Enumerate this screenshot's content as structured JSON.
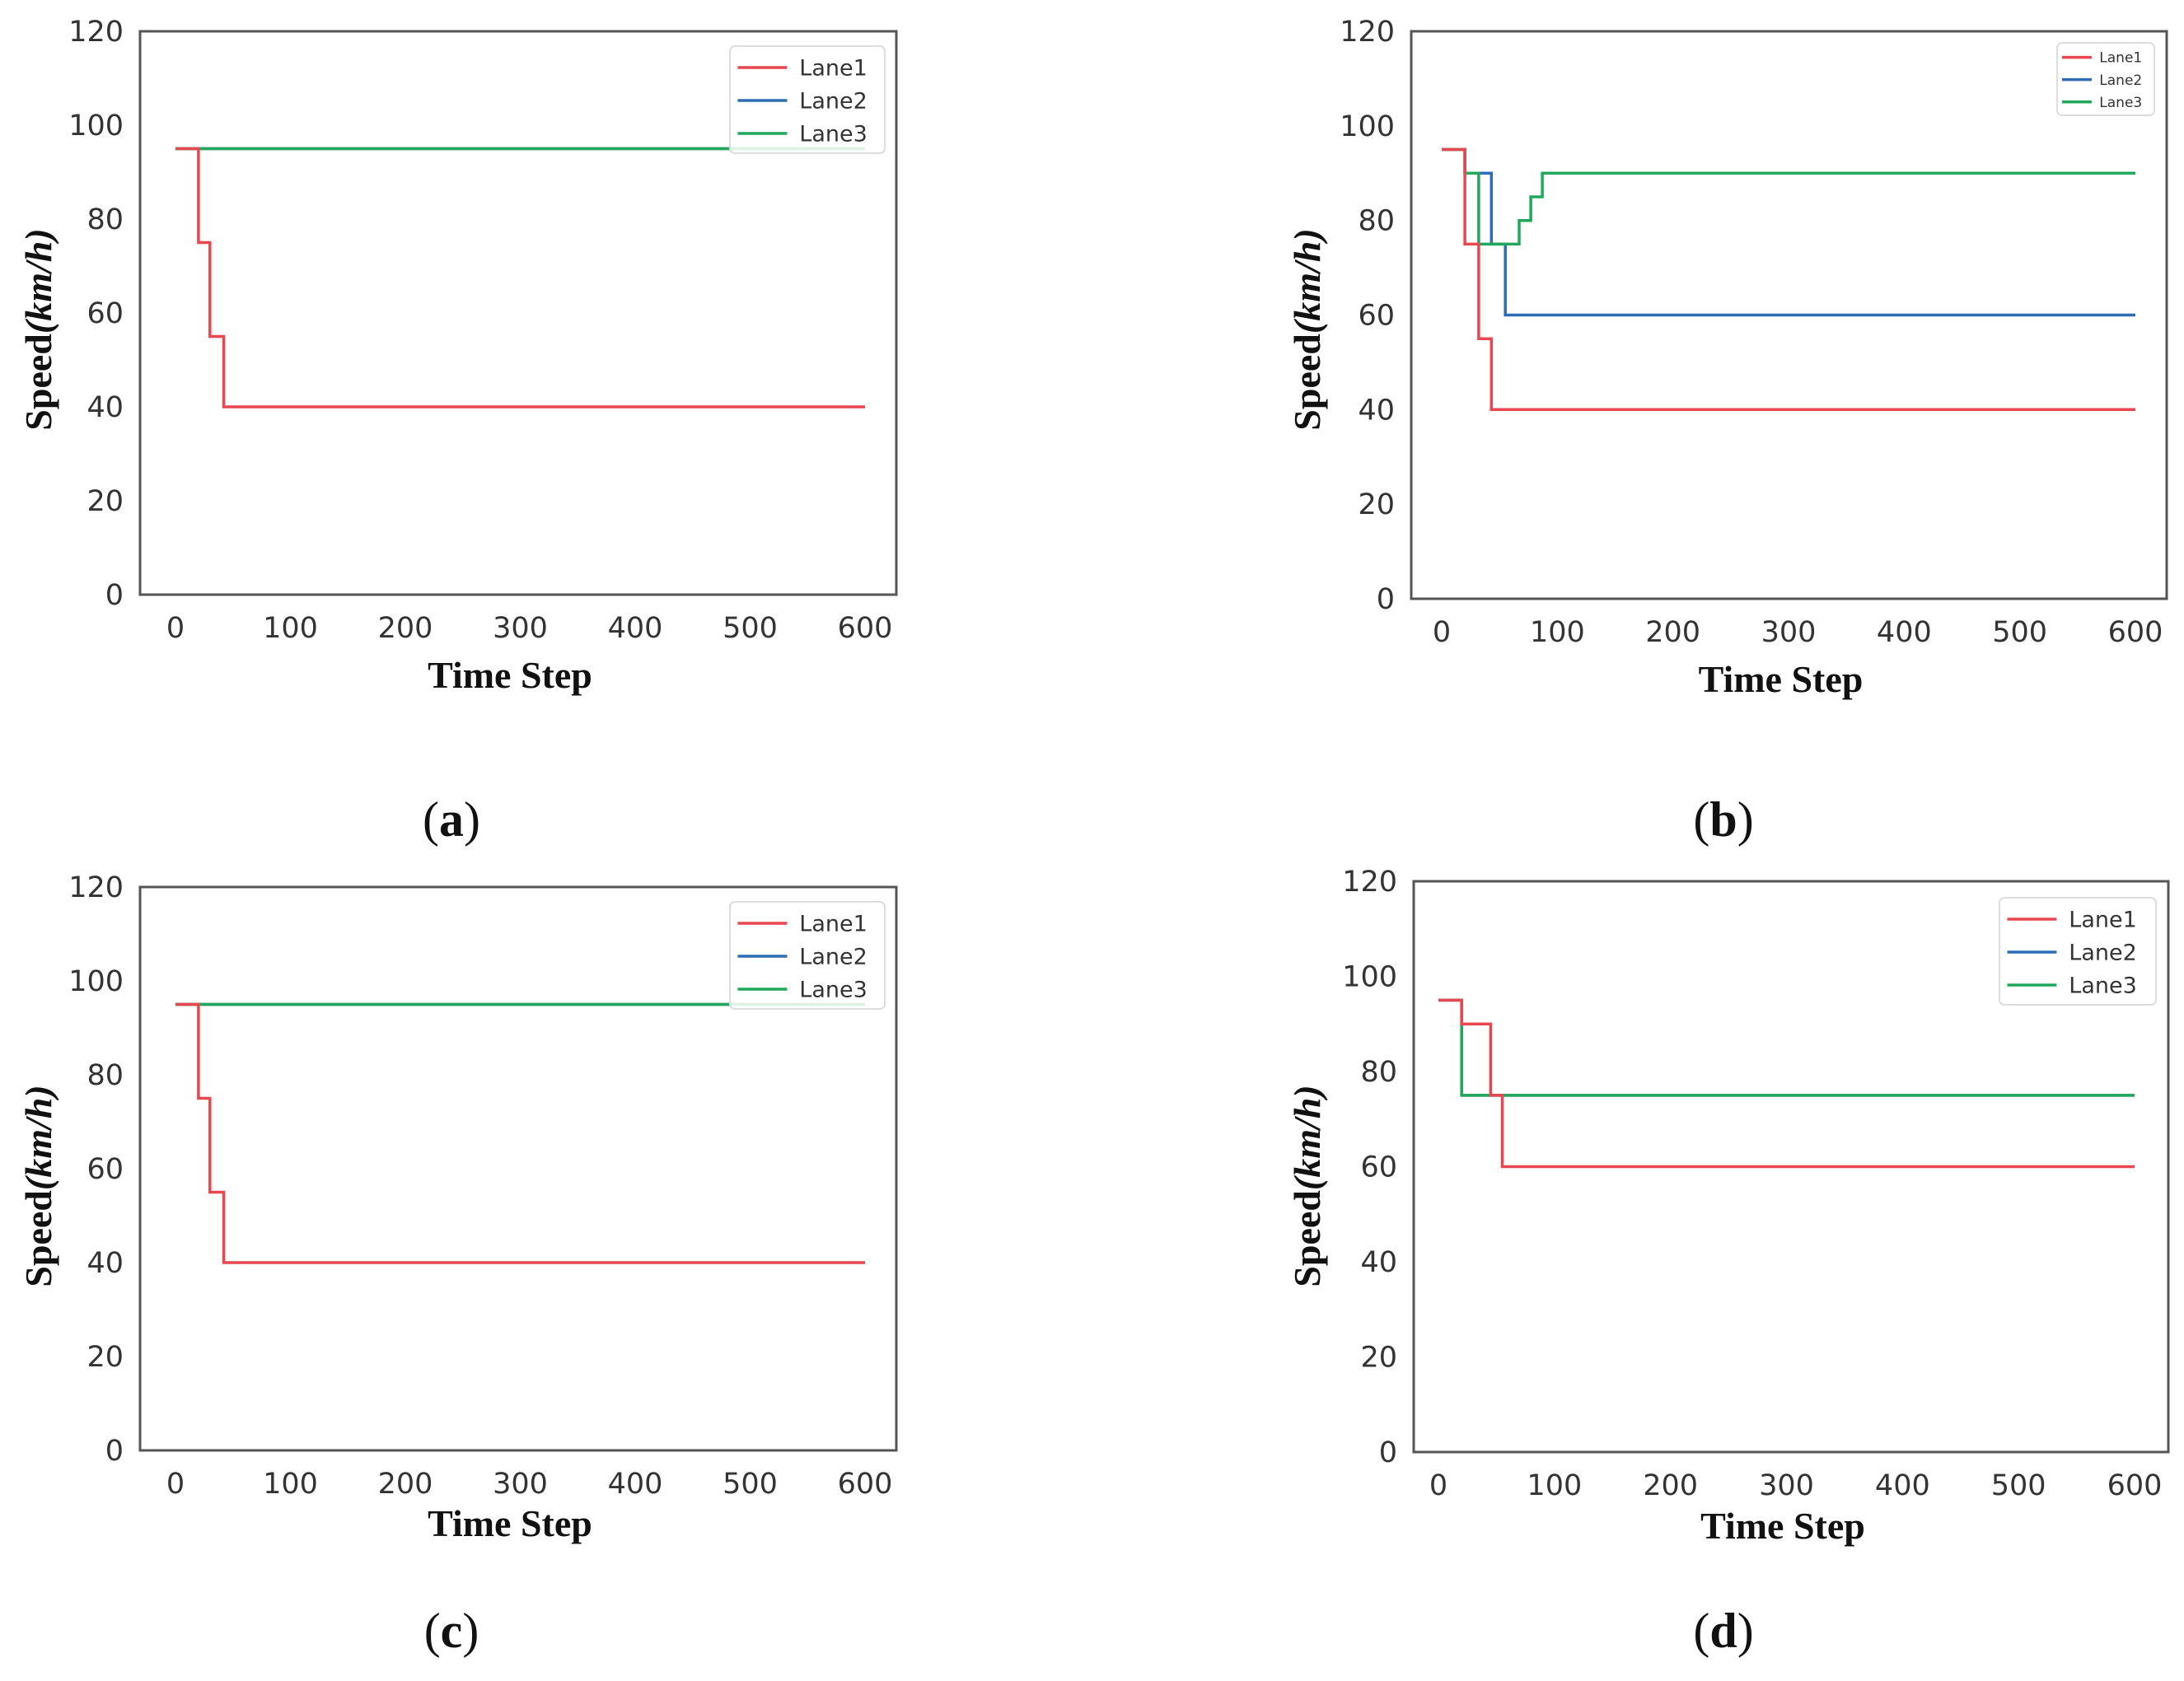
{
  "figure": {
    "colors": {
      "Lane1": "#e8474f",
      "Lane2": "#2e6db4",
      "Lane3": "#22a85a",
      "frame": "#555555",
      "text": "#333333"
    }
  },
  "chart_data": [
    {
      "panel": "a",
      "caption": "(a)",
      "caption_letter": "a",
      "type": "line",
      "xlabel": "Time Step",
      "ylabel_prefix": "Speed",
      "ylabel_unit": "(km/h)",
      "xlim": [
        0,
        600
      ],
      "ylim": [
        0,
        120
      ],
      "xticks": [
        0,
        100,
        200,
        300,
        400,
        500,
        600
      ],
      "yticks": [
        0,
        20,
        40,
        60,
        80,
        100,
        120
      ],
      "legend_position": "top-right",
      "series": [
        {
          "name": "Lane1",
          "color": "#e8474f",
          "x": [
            0,
            20,
            20,
            30,
            30,
            42,
            42,
            600
          ],
          "y": [
            95,
            95,
            75,
            75,
            55,
            55,
            40,
            40
          ]
        },
        {
          "name": "Lane2",
          "color": "#2e6db4",
          "x": [
            0,
            600
          ],
          "y": [
            95,
            95
          ]
        },
        {
          "name": "Lane3",
          "color": "#22a85a",
          "x": [
            0,
            600
          ],
          "y": [
            95,
            95
          ]
        }
      ]
    },
    {
      "panel": "b",
      "caption": "(b)",
      "caption_letter": "b",
      "type": "line",
      "xlabel": "Time Step",
      "ylabel_prefix": "Speed",
      "ylabel_unit": "(km/h)",
      "xlim": [
        0,
        600
      ],
      "ylim": [
        0,
        120
      ],
      "xticks": [
        0,
        100,
        200,
        300,
        400,
        500,
        600
      ],
      "yticks": [
        0,
        20,
        40,
        60,
        80,
        100,
        120
      ],
      "legend_position": "top-right",
      "series": [
        {
          "name": "Lane1",
          "color": "#e8474f",
          "x": [
            0,
            20,
            20,
            32,
            32,
            43,
            43,
            600
          ],
          "y": [
            95,
            95,
            75,
            75,
            55,
            55,
            40,
            40
          ]
        },
        {
          "name": "Lane2",
          "color": "#2e6db4",
          "x": [
            0,
            20,
            20,
            43,
            43,
            55,
            55,
            600
          ],
          "y": [
            95,
            95,
            90,
            90,
            75,
            75,
            60,
            60
          ]
        },
        {
          "name": "Lane3",
          "color": "#22a85a",
          "x": [
            0,
            20,
            20,
            32,
            32,
            67,
            67,
            77,
            77,
            87,
            87,
            600
          ],
          "y": [
            95,
            95,
            90,
            90,
            75,
            75,
            80,
            80,
            85,
            85,
            90,
            90
          ]
        }
      ]
    },
    {
      "panel": "c",
      "caption": "(c)",
      "caption_letter": "c",
      "type": "line",
      "xlabel": "Time Step",
      "ylabel_prefix": "Speed",
      "ylabel_unit": "(km/h)",
      "xlim": [
        0,
        600
      ],
      "ylim": [
        0,
        120
      ],
      "xticks": [
        0,
        100,
        200,
        300,
        400,
        500,
        600
      ],
      "yticks": [
        0,
        20,
        40,
        60,
        80,
        100,
        120
      ],
      "legend_position": "top-right",
      "series": [
        {
          "name": "Lane1",
          "color": "#e8474f",
          "x": [
            0,
            20,
            20,
            30,
            30,
            42,
            42,
            600
          ],
          "y": [
            95,
            95,
            75,
            75,
            55,
            55,
            40,
            40
          ]
        },
        {
          "name": "Lane2",
          "color": "#2e6db4",
          "x": [
            0,
            600
          ],
          "y": [
            95,
            95
          ]
        },
        {
          "name": "Lane3",
          "color": "#22a85a",
          "x": [
            0,
            600
          ],
          "y": [
            95,
            95
          ]
        }
      ]
    },
    {
      "panel": "d",
      "caption": "(d)",
      "caption_letter": "d",
      "type": "line",
      "xlabel": "Time Step",
      "ylabel_prefix": "Speed",
      "ylabel_unit": "(km/h)",
      "xlim": [
        0,
        600
      ],
      "ylim": [
        0,
        120
      ],
      "xticks": [
        0,
        100,
        200,
        300,
        400,
        500,
        600
      ],
      "yticks": [
        0,
        20,
        40,
        60,
        80,
        100,
        120
      ],
      "legend_position": "top-right",
      "series": [
        {
          "name": "Lane1",
          "color": "#e8474f",
          "x": [
            0,
            20,
            20,
            45,
            45,
            55,
            55,
            600
          ],
          "y": [
            95,
            95,
            90,
            90,
            75,
            75,
            60,
            60
          ]
        },
        {
          "name": "Lane2",
          "color": "#2e6db4",
          "x": [
            0,
            20,
            20,
            600
          ],
          "y": [
            95,
            95,
            75,
            75
          ]
        },
        {
          "name": "Lane3",
          "color": "#22a85a",
          "x": [
            0,
            20,
            20,
            600
          ],
          "y": [
            95,
            95,
            75,
            75
          ]
        }
      ]
    }
  ]
}
